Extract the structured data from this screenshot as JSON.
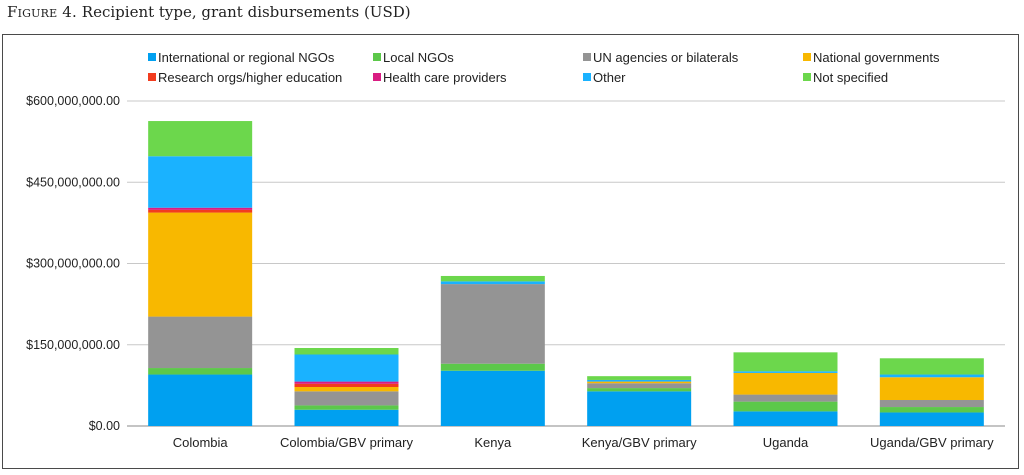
{
  "figure": {
    "label": "Figure 4.",
    "title": "Recipient type, grant disbursements (USD)"
  },
  "chart_data": {
    "type": "bar",
    "stacked": true,
    "title": "Figure 4. Recipient type, grant disbursements (USD)",
    "xlabel": "",
    "ylabel": "",
    "ylim": [
      0,
      600000000
    ],
    "yticks": [
      0,
      150000000,
      300000000,
      450000000,
      600000000
    ],
    "ytick_labels": [
      "$0.00",
      "$150,000,000.00",
      "$300,000,000.00",
      "$450,000,000.00",
      "$600,000,000.00"
    ],
    "grid": true,
    "legend_position": "top",
    "categories": [
      "Colombia",
      "Colombia/GBV primary",
      "Kenya",
      "Kenya/GBV primary",
      "Uganda",
      "Uganda/GBV primary"
    ],
    "series": [
      {
        "name": "International or regional NGOs",
        "color": "#00a0f0",
        "values": [
          95000000,
          30000000,
          102000000,
          64000000,
          27000000,
          25000000
        ]
      },
      {
        "name": "Local NGOs",
        "color": "#5cc84a",
        "values": [
          12000000,
          8000000,
          13000000,
          6000000,
          18000000,
          10000000
        ]
      },
      {
        "name": "UN agencies or bilaterals",
        "color": "#949494",
        "values": [
          95000000,
          26000000,
          147000000,
          9000000,
          13000000,
          13000000
        ]
      },
      {
        "name": "National governments",
        "color": "#f8b800",
        "values": [
          192000000,
          8000000,
          0,
          3000000,
          40000000,
          42000000
        ]
      },
      {
        "name": "Research orgs/higher education",
        "color": "#f23c1e",
        "values": [
          5000000,
          6000000,
          0,
          0,
          0,
          0
        ]
      },
      {
        "name": "Health care providers",
        "color": "#d91d82",
        "values": [
          4000000,
          4000000,
          0,
          0,
          0,
          0
        ]
      },
      {
        "name": "Other",
        "color": "#1ab2ff",
        "values": [
          95000000,
          50000000,
          5000000,
          3000000,
          3000000,
          5000000
        ]
      },
      {
        "name": "Not specified",
        "color": "#6cd74c",
        "values": [
          65000000,
          12000000,
          10000000,
          7000000,
          35000000,
          30000000
        ]
      }
    ]
  }
}
